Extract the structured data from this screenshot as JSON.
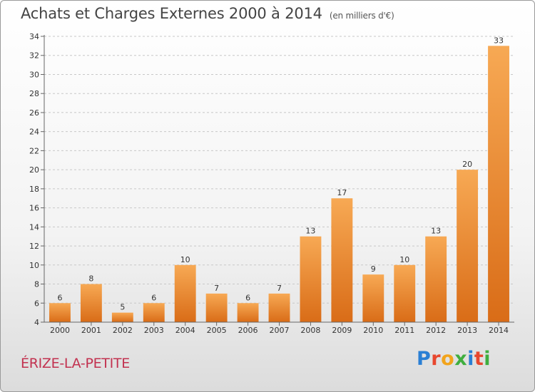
{
  "header": {
    "title": "Achats et Charges Externes 2000 à 2014",
    "unit": "(en milliers d'€)"
  },
  "footer": {
    "commune": "ÉRIZE-LA-PETITE",
    "logo_letters": [
      {
        "ch": "P",
        "color": "#2a7fd4"
      },
      {
        "ch": "r",
        "color": "#e8472e"
      },
      {
        "ch": "o",
        "color": "#f2a41c"
      },
      {
        "ch": "x",
        "color": "#3fae3f"
      },
      {
        "ch": "i",
        "color": "#2a7fd4"
      },
      {
        "ch": "t",
        "color": "#e8472e"
      },
      {
        "ch": "i",
        "color": "#3fae3f"
      }
    ]
  },
  "colors": {
    "bar_light": "#f7a954",
    "bar_dark": "#d96c17",
    "grid": "#c8c8c8",
    "axis": "#666666"
  },
  "chart_data": {
    "type": "bar",
    "title": "Achats et Charges Externes 2000 à 2014",
    "categories": [
      "2000",
      "2001",
      "2002",
      "2003",
      "2004",
      "2005",
      "2006",
      "2007",
      "2008",
      "2009",
      "2010",
      "2011",
      "2012",
      "2013",
      "2014"
    ],
    "values": [
      6,
      8,
      5,
      6,
      10,
      7,
      6,
      7,
      13,
      17,
      9,
      10,
      13,
      20,
      33
    ],
    "ylim": [
      4,
      34
    ],
    "yticks": [
      4,
      6,
      8,
      10,
      12,
      14,
      16,
      18,
      20,
      22,
      24,
      26,
      28,
      30,
      32,
      34
    ],
    "grid": "horizontal dashed",
    "legend": "none"
  }
}
